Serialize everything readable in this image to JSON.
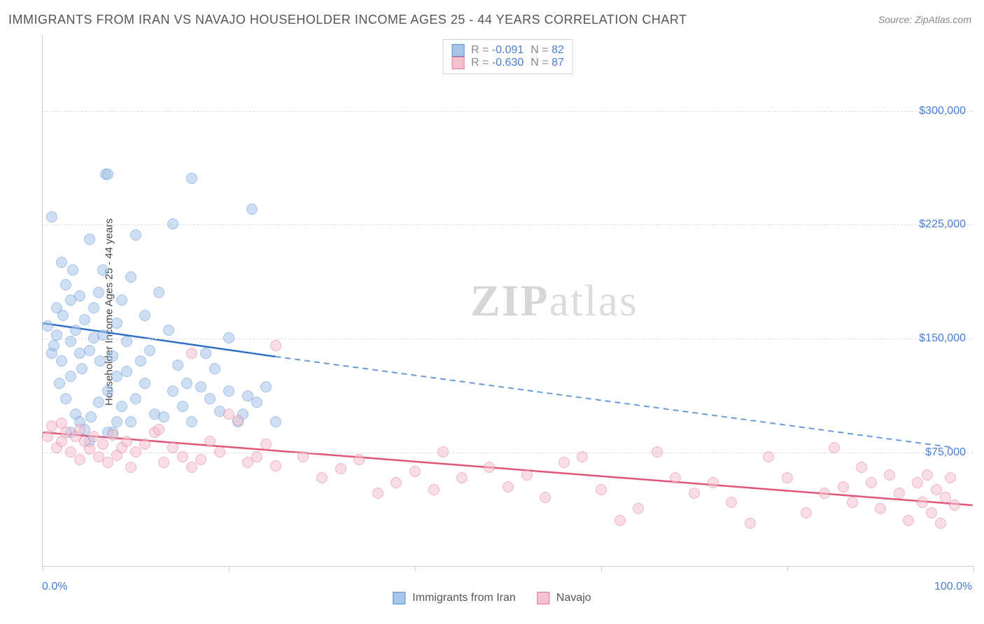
{
  "title": "IMMIGRANTS FROM IRAN VS NAVAJO HOUSEHOLDER INCOME AGES 25 - 44 YEARS CORRELATION CHART",
  "source": "Source: ZipAtlas.com",
  "watermark_a": "ZIP",
  "watermark_b": "atlas",
  "chart": {
    "type": "scatter",
    "background_color": "#ffffff",
    "grid_color": "#dddddd",
    "axis_color": "#cccccc",
    "ylabel": "Householder Income Ages 25 - 44 years",
    "ylabel_fontsize": 15,
    "label_color": "#444444",
    "tick_color": "#4a7fd6",
    "tick_fontsize": 16,
    "ylim": [
      0,
      350000
    ],
    "ygrid": [
      75000,
      150000,
      225000,
      300000
    ],
    "ytick_labels": [
      "$75,000",
      "$150,000",
      "$225,000",
      "$300,000"
    ],
    "xlim": [
      0,
      100
    ],
    "xtick_positions": [
      0,
      20,
      40,
      60,
      80,
      100
    ],
    "xmin_label": "0.0%",
    "xmax_label": "100.0%",
    "marker_radius": 8,
    "marker_opacity": 0.55,
    "series": [
      {
        "name": "Immigrants from Iran",
        "color_fill": "#a8c6ea",
        "color_stroke": "#5b8fd4",
        "r": -0.091,
        "n": 82,
        "trend": {
          "x1": 0,
          "y1": 160000,
          "x2_solid": 25,
          "y2_solid": 138000,
          "x2_dash": 98,
          "y2_dash": 78000,
          "solid_color": "#2f6fc7",
          "dash_color": "#6a9ad6",
          "line_width": 2.5
        },
        "points": [
          [
            0.5,
            158000
          ],
          [
            1,
            230000
          ],
          [
            1,
            140000
          ],
          [
            1.2,
            145000
          ],
          [
            1.5,
            170000
          ],
          [
            1.5,
            152000
          ],
          [
            1.8,
            120000
          ],
          [
            2,
            200000
          ],
          [
            2,
            135000
          ],
          [
            2.2,
            165000
          ],
          [
            2.5,
            185000
          ],
          [
            2.5,
            110000
          ],
          [
            3,
            175000
          ],
          [
            3,
            148000
          ],
          [
            3,
            125000
          ],
          [
            3.2,
            195000
          ],
          [
            3.5,
            155000
          ],
          [
            3.5,
            100000
          ],
          [
            4,
            140000
          ],
          [
            4,
            178000
          ],
          [
            4.2,
            130000
          ],
          [
            4.5,
            162000
          ],
          [
            4.5,
            90000
          ],
          [
            5,
            142000
          ],
          [
            5,
            215000
          ],
          [
            5.2,
            98000
          ],
          [
            5.5,
            150000
          ],
          [
            5.5,
            170000
          ],
          [
            6,
            108000
          ],
          [
            6,
            180000
          ],
          [
            6.2,
            135000
          ],
          [
            6.5,
            152000
          ],
          [
            6.5,
            195000
          ],
          [
            6.8,
            258000
          ],
          [
            7,
            258000
          ],
          [
            7,
            115000
          ],
          [
            7.5,
            138000
          ],
          [
            7.5,
            88000
          ],
          [
            8,
            160000
          ],
          [
            8,
            125000
          ],
          [
            8.5,
            175000
          ],
          [
            8.5,
            105000
          ],
          [
            9,
            148000
          ],
          [
            9,
            128000
          ],
          [
            9.5,
            190000
          ],
          [
            9.5,
            95000
          ],
          [
            10,
            110000
          ],
          [
            10,
            218000
          ],
          [
            10.5,
            135000
          ],
          [
            11,
            120000
          ],
          [
            11,
            165000
          ],
          [
            11.5,
            142000
          ],
          [
            12,
            100000
          ],
          [
            12.5,
            180000
          ],
          [
            13,
            98000
          ],
          [
            13.5,
            155000
          ],
          [
            14,
            225000
          ],
          [
            14,
            115000
          ],
          [
            14.5,
            132000
          ],
          [
            15,
            105000
          ],
          [
            15.5,
            120000
          ],
          [
            16,
            255000
          ],
          [
            16,
            95000
          ],
          [
            17,
            118000
          ],
          [
            17.5,
            140000
          ],
          [
            18,
            110000
          ],
          [
            18.5,
            130000
          ],
          [
            19,
            102000
          ],
          [
            20,
            150000
          ],
          [
            20,
            115000
          ],
          [
            21,
            95000
          ],
          [
            21.5,
            100000
          ],
          [
            22,
            112000
          ],
          [
            22.5,
            235000
          ],
          [
            23,
            108000
          ],
          [
            24,
            118000
          ],
          [
            25,
            95000
          ],
          [
            7,
            88000
          ],
          [
            8,
            95000
          ],
          [
            3,
            88000
          ],
          [
            4,
            95000
          ],
          [
            5,
            82000
          ]
        ]
      },
      {
        "name": "Navajo",
        "color_fill": "#f4c2cf",
        "color_stroke": "#e27894",
        "r": -0.63,
        "n": 87,
        "trend": {
          "x1": 0,
          "y1": 88000,
          "x2_solid": 100,
          "y2_solid": 40000,
          "solid_color": "#e05578",
          "line_width": 2.5
        },
        "points": [
          [
            0.5,
            85000
          ],
          [
            1,
            92000
          ],
          [
            1.5,
            78000
          ],
          [
            2,
            82000
          ],
          [
            2,
            94000
          ],
          [
            2.5,
            88000
          ],
          [
            3,
            75000
          ],
          [
            3.5,
            85000
          ],
          [
            4,
            70000
          ],
          [
            4,
            90000
          ],
          [
            4.5,
            82000
          ],
          [
            5,
            77000
          ],
          [
            5.5,
            85000
          ],
          [
            6,
            72000
          ],
          [
            6.5,
            80000
          ],
          [
            7,
            68000
          ],
          [
            7.5,
            86000
          ],
          [
            8,
            73000
          ],
          [
            8.5,
            78000
          ],
          [
            9,
            82000
          ],
          [
            9.5,
            65000
          ],
          [
            10,
            75000
          ],
          [
            11,
            80000
          ],
          [
            12,
            88000
          ],
          [
            12.5,
            90000
          ],
          [
            13,
            68000
          ],
          [
            14,
            78000
          ],
          [
            15,
            72000
          ],
          [
            16,
            65000
          ],
          [
            16,
            140000
          ],
          [
            17,
            70000
          ],
          [
            18,
            82000
          ],
          [
            19,
            75000
          ],
          [
            20,
            100000
          ],
          [
            21,
            96000
          ],
          [
            22,
            68000
          ],
          [
            23,
            72000
          ],
          [
            24,
            80000
          ],
          [
            25,
            66000
          ],
          [
            25,
            145000
          ],
          [
            28,
            72000
          ],
          [
            30,
            58000
          ],
          [
            32,
            64000
          ],
          [
            34,
            70000
          ],
          [
            36,
            48000
          ],
          [
            38,
            55000
          ],
          [
            40,
            62000
          ],
          [
            42,
            50000
          ],
          [
            43,
            75000
          ],
          [
            45,
            58000
          ],
          [
            48,
            65000
          ],
          [
            50,
            52000
          ],
          [
            52,
            60000
          ],
          [
            54,
            45000
          ],
          [
            56,
            68000
          ],
          [
            58,
            72000
          ],
          [
            60,
            50000
          ],
          [
            62,
            30000
          ],
          [
            64,
            38000
          ],
          [
            66,
            75000
          ],
          [
            68,
            58000
          ],
          [
            70,
            48000
          ],
          [
            72,
            55000
          ],
          [
            74,
            42000
          ],
          [
            76,
            28000
          ],
          [
            78,
            72000
          ],
          [
            80,
            58000
          ],
          [
            82,
            35000
          ],
          [
            84,
            48000
          ],
          [
            85,
            78000
          ],
          [
            86,
            52000
          ],
          [
            87,
            42000
          ],
          [
            88,
            65000
          ],
          [
            89,
            55000
          ],
          [
            90,
            38000
          ],
          [
            91,
            60000
          ],
          [
            92,
            48000
          ],
          [
            93,
            30000
          ],
          [
            94,
            55000
          ],
          [
            94.5,
            42000
          ],
          [
            95,
            60000
          ],
          [
            95.5,
            35000
          ],
          [
            96,
            50000
          ],
          [
            96.5,
            28000
          ],
          [
            97,
            45000
          ],
          [
            97.5,
            58000
          ],
          [
            98,
            40000
          ]
        ]
      }
    ]
  },
  "legend_bottom": [
    {
      "label": "Immigrants from Iran",
      "fill": "#a8c6ea",
      "stroke": "#5b8fd4"
    },
    {
      "label": "Navajo",
      "fill": "#f4c2cf",
      "stroke": "#e27894"
    }
  ]
}
